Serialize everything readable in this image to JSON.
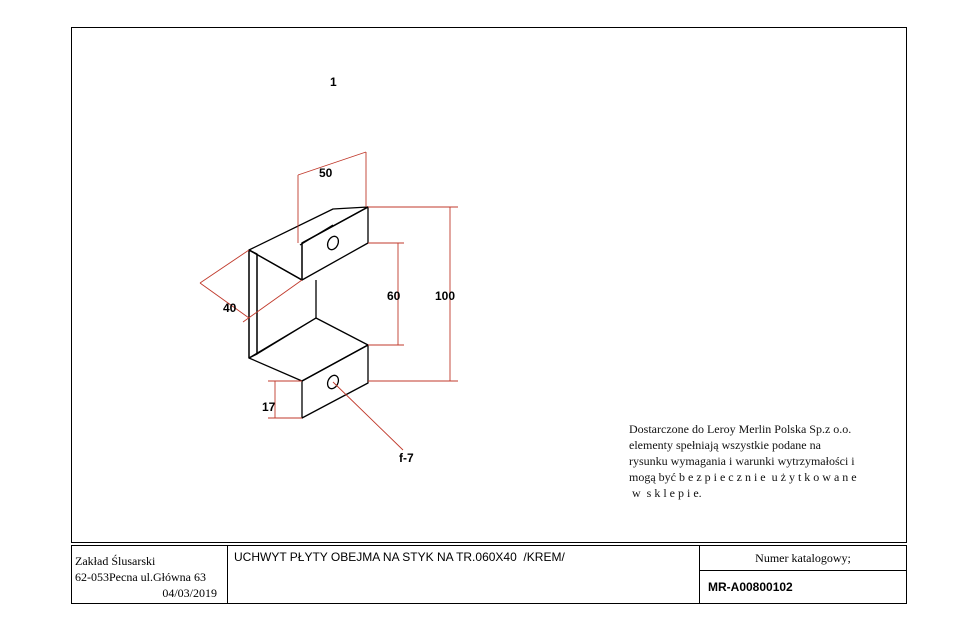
{
  "drawing": {
    "view_number": "1",
    "dimensions": {
      "width": "50",
      "depth": "40",
      "inner_height": "60",
      "total_height": "100",
      "flange": "17",
      "hole": "f-7"
    },
    "colors": {
      "outline": "#000000",
      "dimension_lines": "#c0392b"
    }
  },
  "notes": {
    "lines": [
      "Dostarczone do Leroy Merlin Polska Sp.z o.o.",
      "elementy spełniają wszystkie podane na",
      "rysunku wymagania i warunki wytrzymałości i",
      "mogą być b e z p i e c z n i e  u ż y t k o w a n e",
      " w  s k l e p i e."
    ]
  },
  "title_block": {
    "company": "Zakład Ślusarski",
    "address": "62-053Pecna ul.Główna 63",
    "date": "04/03/2019",
    "description": "UCHWYT PŁYTY OBEJMA NA STYK NA TR.060X40  /KREM/",
    "catalog_label": "Numer katalogowy;",
    "catalog_number": "MR-A00800102"
  }
}
